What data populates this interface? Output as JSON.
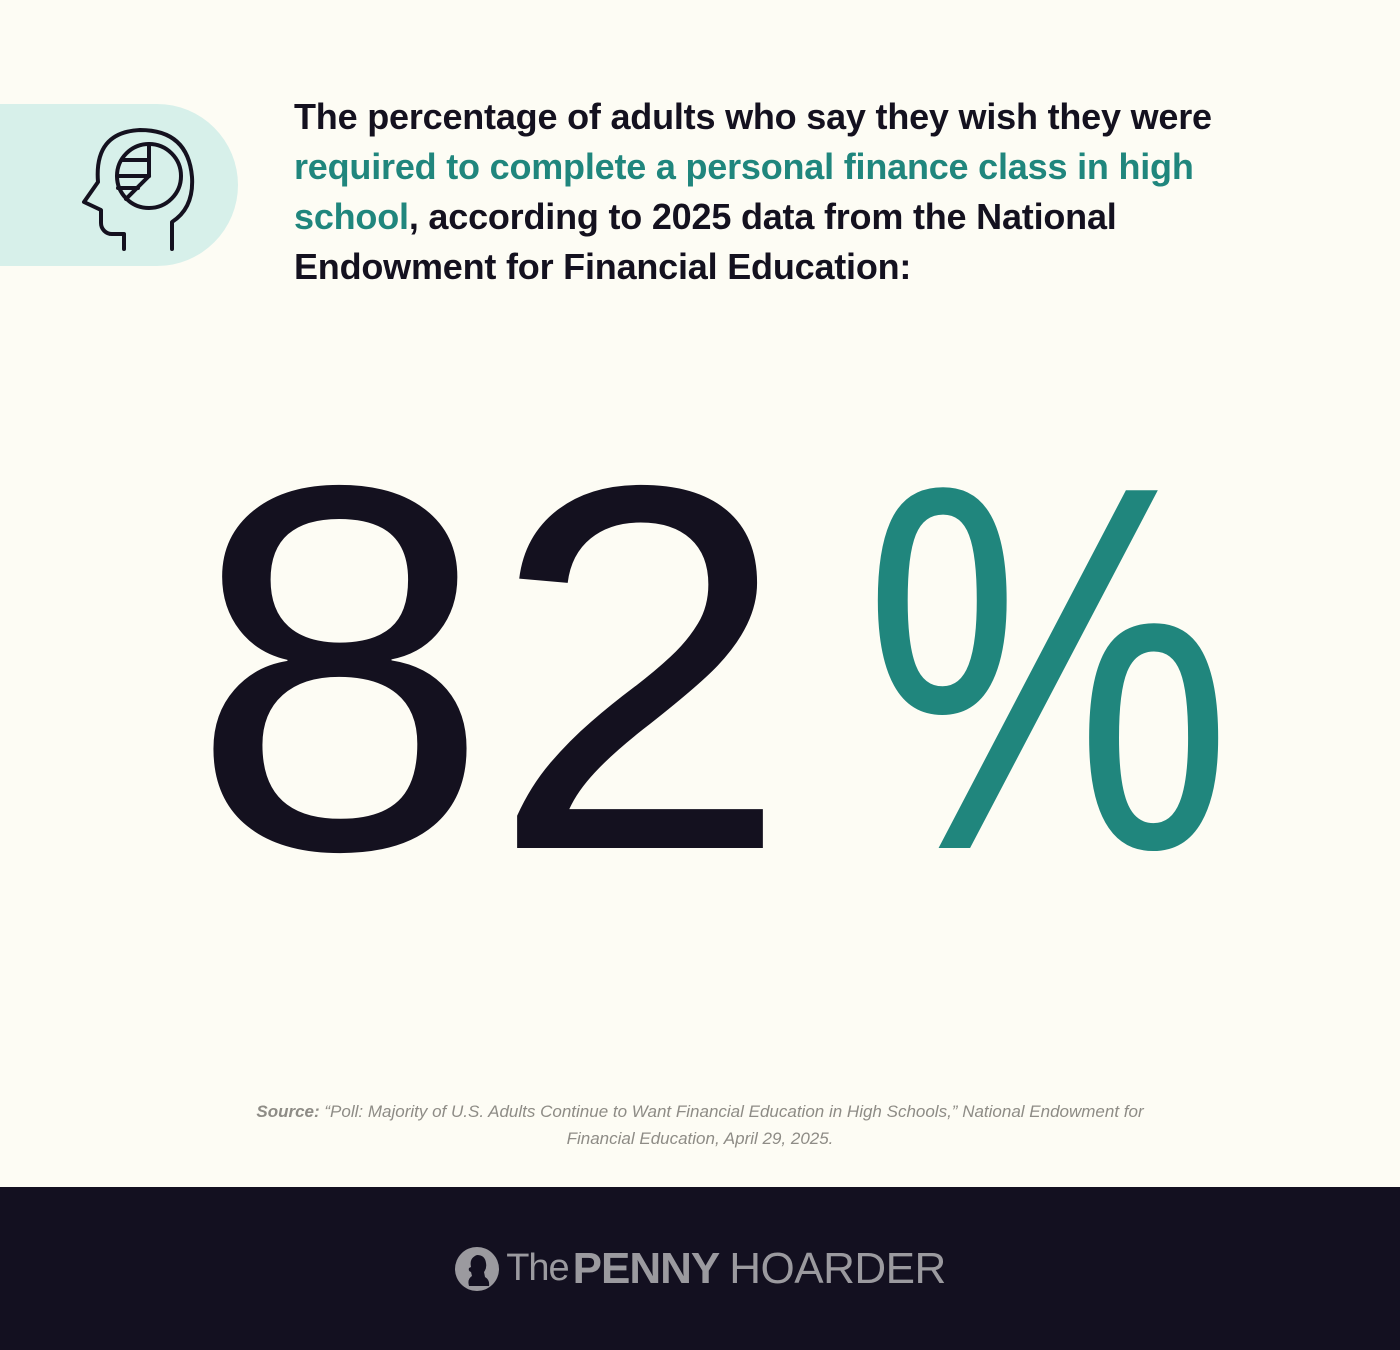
{
  "headline": {
    "part1": "The percentage of adults who say they wish they were ",
    "highlight": "required to complete a personal finance class in high school",
    "part2": ", according to 2025 data from the National Endowment for Financial Education:"
  },
  "stat": {
    "number": "82",
    "symbol": "%"
  },
  "source": {
    "label": "Source:",
    "text": " “Poll: Majority of U.S. Adults Continue to Want Financial Education in High Schools,” National Endowment for Financial Education, April 29, 2025."
  },
  "brand": {
    "the": "The",
    "penny": "PENNY",
    "hoarder": "HOARDER"
  },
  "colors": {
    "background": "#FDFCF4",
    "accent": "#20867D",
    "dark": "#131020",
    "icon_tab": "#D7F0EA"
  },
  "icons": {
    "header": "head-with-pie-chart-icon",
    "logo": "penny-coin-profile-icon"
  }
}
